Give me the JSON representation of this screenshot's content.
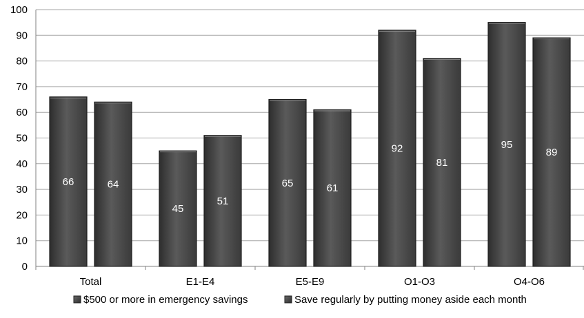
{
  "chart_data": {
    "type": "bar",
    "categories": [
      "Total",
      "E1-E4",
      "E5-E9",
      "O1-O3",
      "O4-O6"
    ],
    "series": [
      {
        "name": "$500 or more in emergency savings",
        "values": [
          66,
          45,
          65,
          92,
          95
        ]
      },
      {
        "name": "Save regularly by putting money aside each month",
        "values": [
          64,
          51,
          61,
          81,
          89
        ]
      }
    ],
    "ylim": [
      0,
      100
    ],
    "yticks": [
      "0",
      "10",
      "20",
      "30",
      "40",
      "50",
      "60",
      "70",
      "80",
      "90",
      "100"
    ],
    "data_labels": true,
    "grid": true,
    "legend": "bottom",
    "colors": {
      "bar_dark": "#3a3a3a",
      "bar_mid": "#555555",
      "bar_light": "#707070",
      "grid": "#a6a6a6",
      "axis": "#808080",
      "text": "#000000",
      "label": "#ffffff"
    }
  }
}
